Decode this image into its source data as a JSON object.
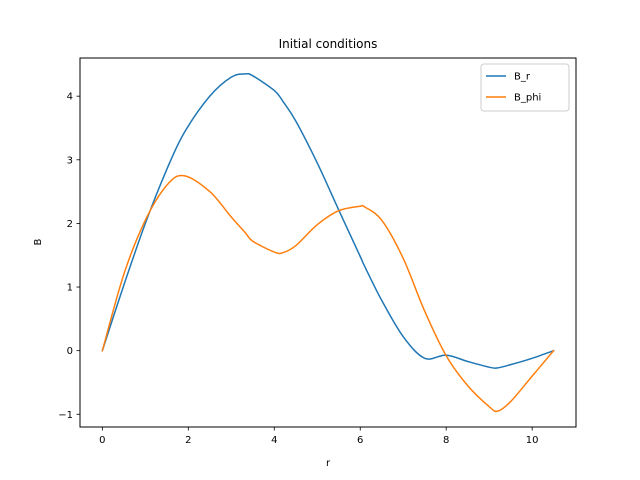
{
  "chart_data": {
    "type": "line",
    "title": "Initial conditions",
    "xlabel": "r",
    "ylabel": "B",
    "xlim": [
      -0.52,
      11.02
    ],
    "ylim": [
      -1.2,
      4.6
    ],
    "xticks": [
      0,
      2,
      4,
      6,
      8,
      10
    ],
    "yticks": [
      -1,
      0,
      1,
      2,
      3,
      4
    ],
    "xtick_labels": [
      "0",
      "2",
      "4",
      "6",
      "8",
      "10"
    ],
    "ytick_labels": [
      "−1",
      "0",
      "1",
      "2",
      "3",
      "4"
    ],
    "grid": false,
    "legend": "top-right",
    "x": [
      0,
      0.5,
      1.0,
      1.5,
      1.9,
      2.5,
      3.0,
      3.33,
      3.5,
      4.0,
      4.2,
      4.5,
      5.0,
      5.5,
      6.0,
      6.1,
      6.5,
      7.0,
      7.5,
      8.0,
      8.5,
      9.0,
      9.2,
      9.5,
      10.0,
      10.5
    ],
    "series": [
      {
        "name": "B_r",
        "color": "#1f77b4",
        "values": [
          0.0,
          1.03,
          2.0,
          2.85,
          3.42,
          4.0,
          4.3,
          4.35,
          4.32,
          4.09,
          3.92,
          3.61,
          2.95,
          2.21,
          1.48,
          1.33,
          0.79,
          0.22,
          -0.12,
          -0.07,
          -0.17,
          -0.26,
          -0.27,
          -0.22,
          -0.12,
          0.0
        ]
      },
      {
        "name": "B_phi",
        "color": "#ff7f0e",
        "values": [
          0.0,
          1.2,
          2.05,
          2.6,
          2.75,
          2.5,
          2.1,
          1.85,
          1.72,
          1.55,
          1.54,
          1.65,
          1.98,
          2.2,
          2.27,
          2.26,
          2.05,
          1.45,
          0.62,
          -0.08,
          -0.55,
          -0.88,
          -0.95,
          -0.8,
          -0.4,
          0.0
        ]
      }
    ]
  }
}
